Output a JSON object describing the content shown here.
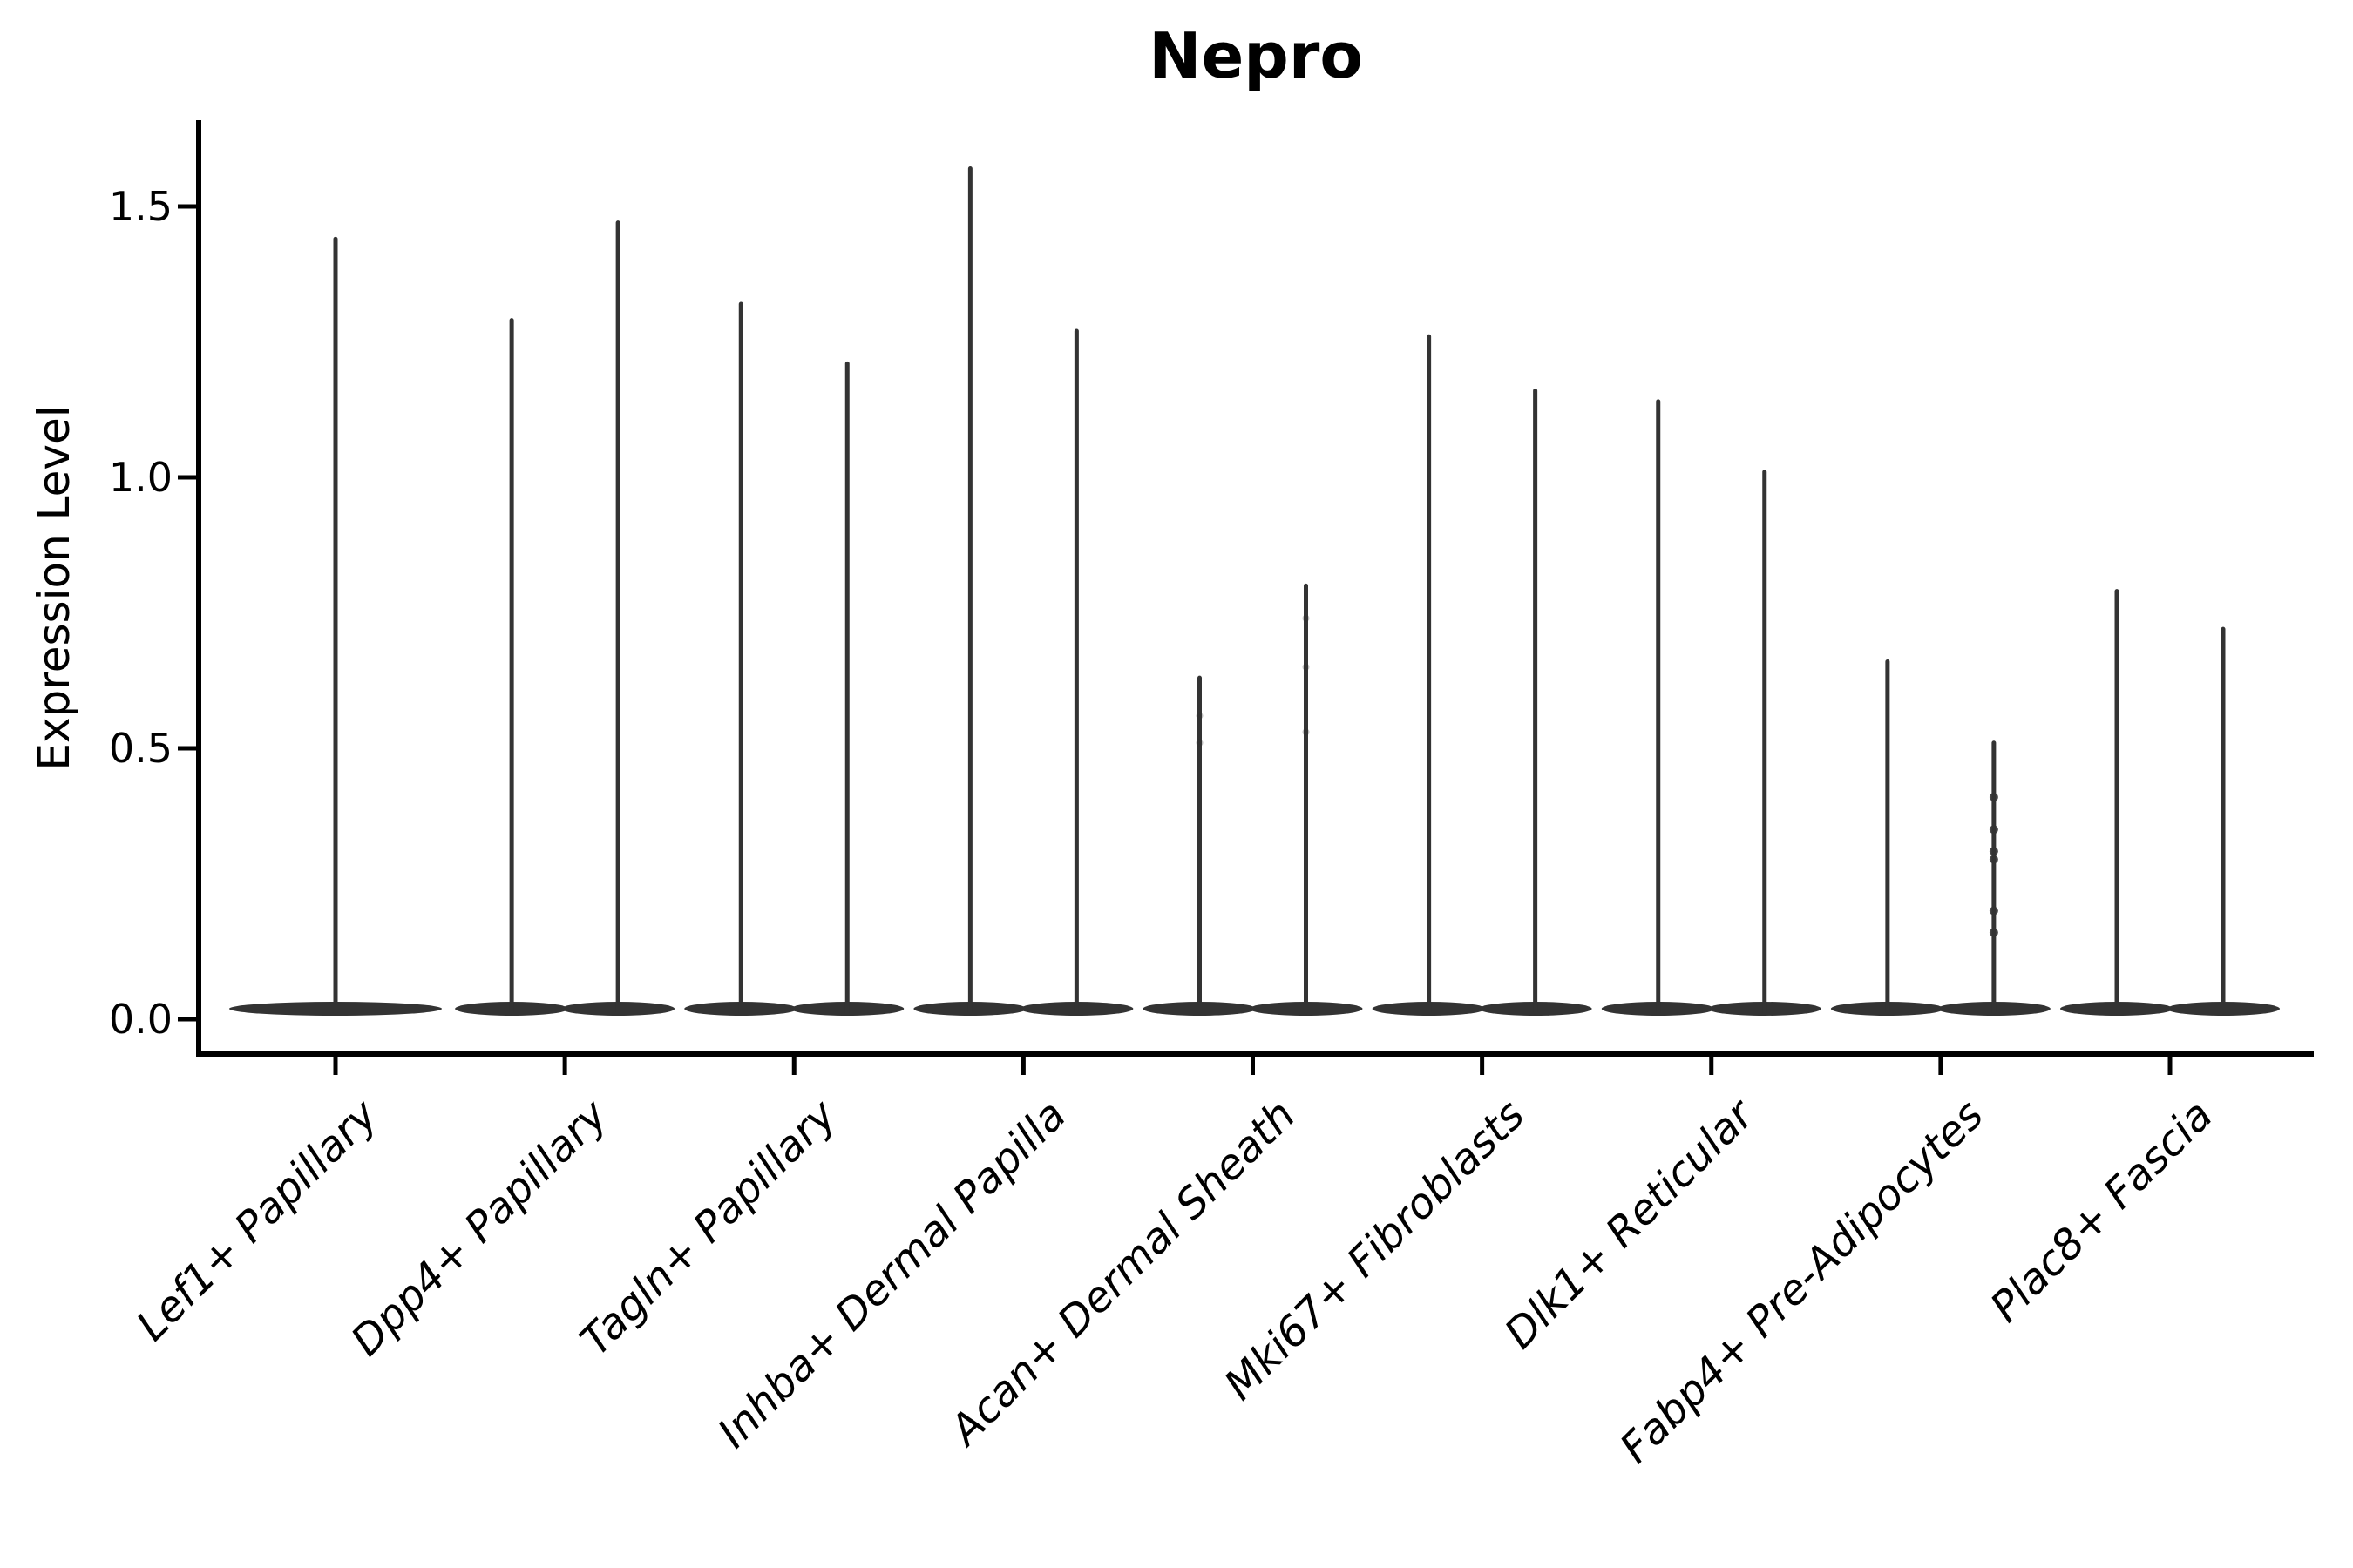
{
  "title": "Nepro",
  "colors": {
    "violin": "#333333",
    "axis": "#000000",
    "text": "#000000",
    "background": "#ffffff"
  },
  "chart_data": {
    "type": "violin",
    "title": "Nepro",
    "xlabel": "",
    "ylabel": "Expression Level",
    "ylim": [
      -0.06,
      1.66
    ],
    "yticks": [
      0,
      0.5,
      1.0,
      1.5
    ],
    "ytick_labels": [
      "0.0",
      "0.5",
      "1.0",
      "1.5"
    ],
    "grid": false,
    "legend_position": "none",
    "x_label_rotation_deg": 45,
    "x_label_style": "italic",
    "categories": [
      "Lef1+ Papillary",
      "Dpp4+ Papillary",
      "Tagln+ Papillary",
      "Inhba+ Dermal Papilla",
      "Acan+ Dermal Sheath",
      "Mki67+ Fibroblasts",
      "Dlk1+ Reticular",
      "Fabp4+ Pre-Adipocytes",
      "Plac8+ Fascia"
    ],
    "groups": [
      {
        "category": "Lef1+ Papillary",
        "violins": [
          {
            "pos": 0,
            "max": 1.44
          }
        ]
      },
      {
        "category": "Dpp4+ Papillary",
        "violins": [
          {
            "pos": -1,
            "max": 1.29
          },
          {
            "pos": 1,
            "max": 1.47
          }
        ]
      },
      {
        "category": "Tagln+ Papillary",
        "violins": [
          {
            "pos": -1,
            "max": 1.32
          },
          {
            "pos": 1,
            "max": 1.21
          }
        ]
      },
      {
        "category": "Inhba+ Dermal Papilla",
        "violins": [
          {
            "pos": -1,
            "max": 1.57
          },
          {
            "pos": 1,
            "max": 1.27
          }
        ]
      },
      {
        "category": "Acan+ Dermal Sheath",
        "violins": [
          {
            "pos": -1,
            "max": 0.63,
            "faint_dots": [
              0.56,
              0.51
            ]
          },
          {
            "pos": 1,
            "max": 0.8,
            "faint_dots": [
              0.74,
              0.65,
              0.53
            ]
          }
        ]
      },
      {
        "category": "Mki67+ Fibroblasts",
        "violins": [
          {
            "pos": -1,
            "max": 1.26
          },
          {
            "pos": 1,
            "max": 1.16
          }
        ]
      },
      {
        "category": "Dlk1+ Reticular",
        "violins": [
          {
            "pos": -1,
            "max": 1.14
          },
          {
            "pos": 1,
            "max": 1.01
          }
        ]
      },
      {
        "category": "Fabp4+ Pre-Adipocytes",
        "violins": [
          {
            "pos": -1,
            "max": 0.66
          },
          {
            "pos": 1,
            "max": 0.51,
            "dots": [
              0.41,
              0.35,
              0.31,
              0.295,
              0.2,
              0.16
            ]
          }
        ]
      },
      {
        "category": "Plac8+ Fascia",
        "violins": [
          {
            "pos": -1,
            "max": 0.79
          },
          {
            "pos": 1,
            "max": 0.72
          }
        ]
      }
    ]
  }
}
